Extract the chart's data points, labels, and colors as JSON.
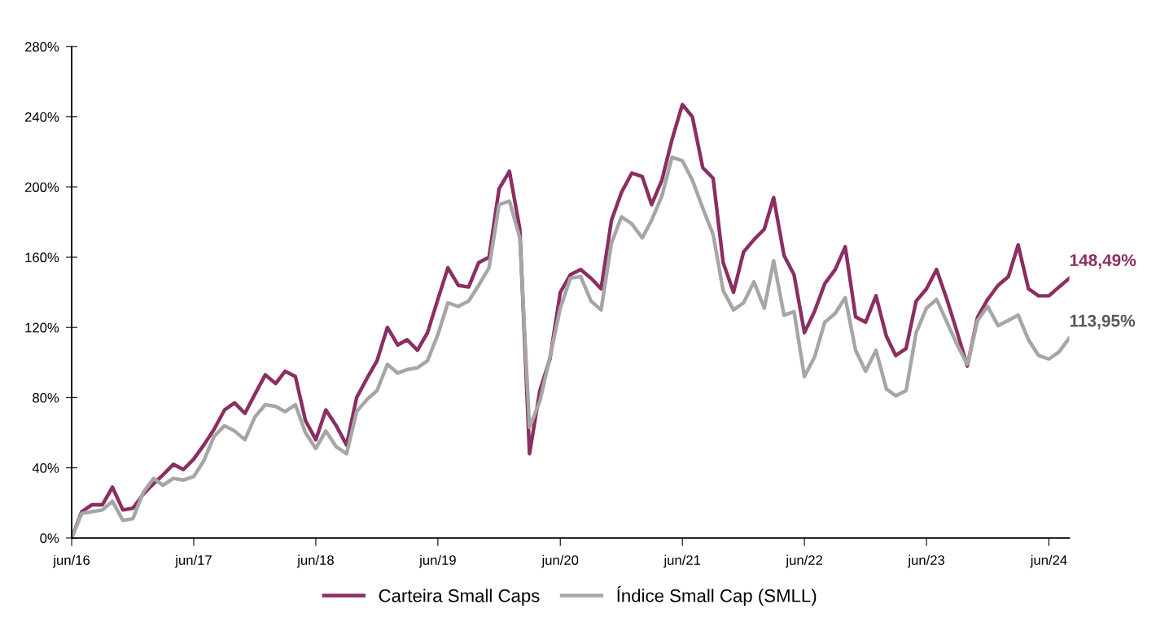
{
  "chart_data": {
    "type": "line",
    "x": [
      "2016-06",
      "2016-07",
      "2016-08",
      "2016-09",
      "2016-10",
      "2016-11",
      "2016-12",
      "2017-01",
      "2017-02",
      "2017-03",
      "2017-04",
      "2017-05",
      "2017-06",
      "2017-07",
      "2017-08",
      "2017-09",
      "2017-10",
      "2017-11",
      "2017-12",
      "2018-01",
      "2018-02",
      "2018-03",
      "2018-04",
      "2018-05",
      "2018-06",
      "2018-07",
      "2018-08",
      "2018-09",
      "2018-10",
      "2018-11",
      "2018-12",
      "2019-01",
      "2019-02",
      "2019-03",
      "2019-04",
      "2019-05",
      "2019-06",
      "2019-07",
      "2019-08",
      "2019-09",
      "2019-10",
      "2019-11",
      "2019-12",
      "2020-01",
      "2020-02",
      "2020-03",
      "2020-04",
      "2020-05",
      "2020-06",
      "2020-07",
      "2020-08",
      "2020-09",
      "2020-10",
      "2020-11",
      "2020-12",
      "2021-01",
      "2021-02",
      "2021-03",
      "2021-04",
      "2021-05",
      "2021-06",
      "2021-07",
      "2021-08",
      "2021-09",
      "2021-10",
      "2021-11",
      "2021-12",
      "2022-01",
      "2022-02",
      "2022-03",
      "2022-04",
      "2022-05",
      "2022-06",
      "2022-07",
      "2022-08",
      "2022-09",
      "2022-10",
      "2022-11",
      "2022-12",
      "2023-01",
      "2023-02",
      "2023-03",
      "2023-04",
      "2023-05",
      "2023-06",
      "2023-07",
      "2023-08",
      "2023-09",
      "2023-10",
      "2023-11",
      "2023-12",
      "2024-01",
      "2024-02",
      "2024-03",
      "2024-04",
      "2024-05",
      "2024-06",
      "2024-07",
      "2024-08"
    ],
    "series": [
      {
        "name": "Carteira Small Caps",
        "color": "#8b2e62",
        "values": [
          0,
          15,
          19,
          19,
          29,
          16,
          17,
          25,
          31,
          36,
          42,
          39,
          45,
          53,
          62,
          73,
          77,
          71,
          82,
          93,
          88,
          95,
          92,
          67,
          56,
          73,
          64,
          53,
          80,
          91,
          101,
          120,
          110,
          113,
          107,
          117,
          136,
          154,
          144,
          143,
          157,
          160,
          199,
          209,
          176,
          48,
          84,
          102,
          140,
          150,
          153,
          148,
          142,
          181,
          197,
          208,
          206,
          190,
          204,
          227,
          247,
          240,
          211,
          205,
          157,
          140,
          163,
          170,
          176,
          194,
          161,
          150,
          117,
          129,
          145,
          153,
          166,
          126,
          123,
          138,
          115,
          104,
          108,
          135,
          142,
          153,
          136,
          117,
          98,
          126,
          136,
          144,
          149,
          167,
          142,
          138,
          138,
          143,
          148
        ]
      },
      {
        "name": "Índice Small Cap (SMLL)",
        "color": "#a6a6a6",
        "values": [
          0,
          14,
          15,
          16,
          21,
          10,
          11,
          26,
          34,
          30,
          34,
          33,
          35,
          44,
          58,
          64,
          61,
          56,
          69,
          76,
          75,
          72,
          76,
          60,
          51,
          61,
          52,
          48,
          72,
          79,
          84,
          99,
          94,
          96,
          97,
          101,
          116,
          134,
          132,
          135,
          144,
          154,
          190,
          192,
          171,
          63,
          78,
          103,
          131,
          148,
          149,
          135,
          130,
          168,
          183,
          179,
          171,
          181,
          195,
          217,
          215,
          204,
          188,
          173,
          141,
          130,
          134,
          146,
          131,
          158,
          127,
          129,
          92,
          103,
          123,
          128,
          137,
          107,
          95,
          107,
          85,
          81,
          84,
          117,
          131,
          136,
          123,
          110,
          99,
          124,
          132,
          121,
          124,
          127,
          113,
          104,
          102,
          106,
          114
        ]
      }
    ],
    "ylim": [
      0,
      280
    ],
    "yticks": [
      {
        "value": 0,
        "label": "0%"
      },
      {
        "value": 40,
        "label": "40%"
      },
      {
        "value": 80,
        "label": "80%"
      },
      {
        "value": 120,
        "label": "120%"
      },
      {
        "value": 160,
        "label": "160%"
      },
      {
        "value": 200,
        "label": "200%"
      },
      {
        "value": 240,
        "label": "240%"
      },
      {
        "value": 280,
        "label": "280%"
      }
    ],
    "xlim": [
      "2016-06",
      "2024-08"
    ],
    "xticks": [
      {
        "value": "2016-06",
        "label": "jun/16"
      },
      {
        "value": "2017-06",
        "label": "jun/17"
      },
      {
        "value": "2018-06",
        "label": "jun/18"
      },
      {
        "value": "2019-06",
        "label": "jun/19"
      },
      {
        "value": "2020-06",
        "label": "jun/20"
      },
      {
        "value": "2021-06",
        "label": "jun/21"
      },
      {
        "value": "2022-06",
        "label": "jun/22"
      },
      {
        "value": "2023-06",
        "label": "jun/23"
      },
      {
        "value": "2024-06",
        "label": "jun/24"
      }
    ],
    "annotations": [
      {
        "text": "148,49%",
        "x": "2024-08",
        "y": 148.49
      },
      {
        "text": "113,95%",
        "x": "2024-08",
        "y": 113.95
      }
    ],
    "grid": false,
    "legend": "bottom",
    "marker": "none",
    "line_style": "solid"
  }
}
